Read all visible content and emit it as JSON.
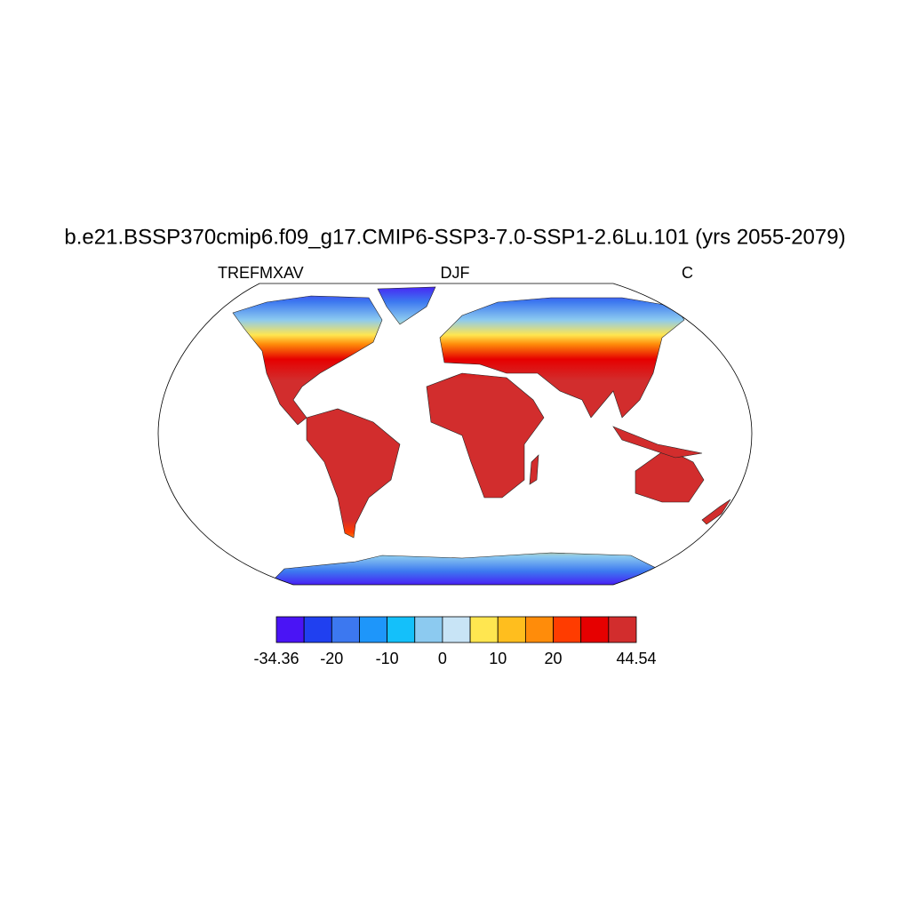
{
  "chart_data": {
    "type": "contour-map",
    "title": "b.e21.BSSP370cmip6.f09_g17.CMIP6-SSP3-7.0-SSP1-2.6Lu.101 (yrs 2055-2079)",
    "left_subtitle": "TREFMXAV",
    "center_subtitle": "DJF",
    "right_subtitle": "C",
    "colorbar": {
      "colors": [
        "#4a14f5",
        "#2040f0",
        "#3c78f0",
        "#1e96fa",
        "#14c0fa",
        "#8ccaf0",
        "#c8e4f6",
        "#ffe650",
        "#ffbe1e",
        "#ff8c0a",
        "#ff3c00",
        "#e60000",
        "#d22d2d"
      ],
      "levels": [
        -25,
        -20,
        -15,
        -10,
        -5,
        0,
        5,
        10,
        15,
        20,
        25,
        30
      ],
      "ticks": [
        {
          "value": -34.36,
          "label": "-34.36"
        },
        -20,
        -10,
        0,
        10,
        20,
        {
          "value": 44.54,
          "label": "44.54"
        }
      ]
    }
  }
}
